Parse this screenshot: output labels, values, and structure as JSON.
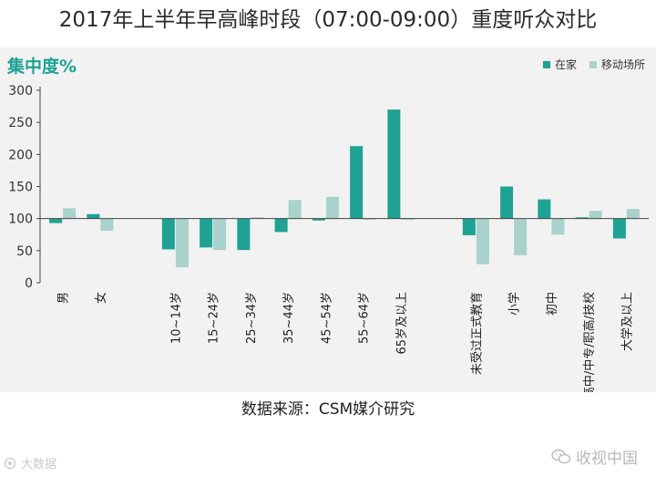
{
  "title": "2017年上半年早高峰时段（07:00-09:00）重度听众对比",
  "source": "数据来源：CSM媒介研究",
  "watermarks": {
    "left": "大数据",
    "right": "收视中国"
  },
  "colors": {
    "home": "#1fa294",
    "mobile": "#a8d2cb",
    "panel": "#f2f2f2",
    "axis": "#444444",
    "accent_text": "#1fa294"
  },
  "chart_data": {
    "type": "bar",
    "title": "2017年上半年早高峰时段（07:00-09:00）重度听众对比",
    "ylabel": "集中度%",
    "xlabel": "",
    "ylim": [
      0,
      300
    ],
    "yticks": [
      0,
      50,
      100,
      150,
      200,
      250,
      300
    ],
    "baseline": 100,
    "grid": false,
    "legend_position": "top-right",
    "categories": [
      "男",
      "女",
      "10~14岁",
      "15~24岁",
      "25~34岁",
      "35~44岁",
      "45~54岁",
      "55~64岁",
      "65岁及以上",
      "未受过正式教育",
      "小学",
      "初中",
      "高中/中专/职高/技校",
      "大学及以上"
    ],
    "group_gaps_after": [
      1,
      8
    ],
    "series": [
      {
        "name": "在家",
        "values": [
          93,
          107,
          52,
          55,
          51,
          79,
          97,
          213,
          270,
          74,
          150,
          130,
          102,
          69
        ]
      },
      {
        "name": "移动场所",
        "values": [
          116,
          81,
          24,
          51,
          102,
          129,
          134,
          98,
          98,
          29,
          43,
          75,
          112,
          115
        ]
      }
    ]
  }
}
